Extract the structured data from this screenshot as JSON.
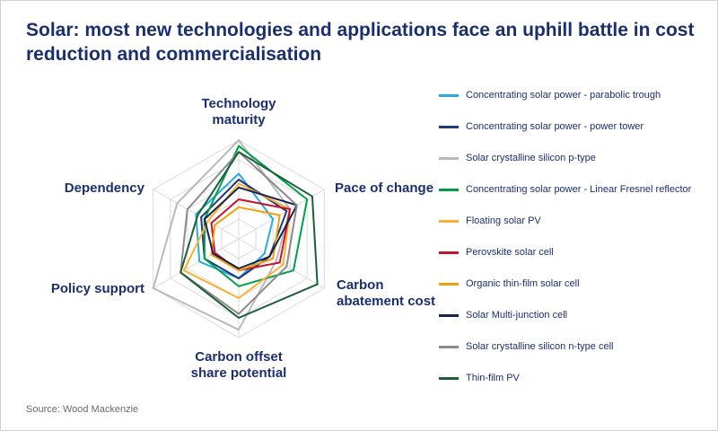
{
  "page": {
    "title_line1": "Solar: most new technologies and applications face an uphill battle in cost",
    "title_line2": "reduction and commercialisation",
    "source": "Source: Wood Mackenzie"
  },
  "colors": {
    "title_text": "#1b2f6e",
    "axis_label_text": "#1b2f6e",
    "legend_text": "#1b2f6e",
    "source_text": "#6b6b6b",
    "grid": "#d9d9d9"
  },
  "chart_data": {
    "type": "radar",
    "title": "Solar: most new technologies and applications face an uphill battle in cost reduction and commercialisation",
    "axes": [
      "Technology maturity",
      "Pace of change",
      "Carbon abatement cost",
      "Carbon offset share potential",
      "Policy support",
      "Dependency"
    ],
    "value_range": [
      0,
      5
    ],
    "grid": "on",
    "grid_levels": 5,
    "legend_position": "right",
    "series": [
      {
        "name": "Concentrating solar power - parabolic trough",
        "color": "#29abe2",
        "values": [
          3.3,
          2.0,
          1.5,
          2.0,
          2.3,
          2.5
        ]
      },
      {
        "name": "Concentrating solar power - power tower",
        "color": "#1f3a7a",
        "values": [
          3.0,
          2.8,
          1.8,
          2.0,
          2.0,
          2.2
        ]
      },
      {
        "name": "Solar crystalline silicon p-type",
        "color": "#b9b9b9",
        "values": [
          5.0,
          3.0,
          2.2,
          4.6,
          5.0,
          3.6
        ]
      },
      {
        "name": "Concentrating solar power - Linear Fresnel reflector",
        "color": "#00a04a",
        "values": [
          4.7,
          4.0,
          3.2,
          2.4,
          2.0,
          2.0
        ]
      },
      {
        "name": "Floating solar PV",
        "color": "#f9b032",
        "values": [
          2.8,
          3.0,
          2.6,
          3.0,
          3.2,
          1.8
        ]
      },
      {
        "name": "Perovskite solar cell",
        "color": "#c4122f",
        "values": [
          2.0,
          3.0,
          2.4,
          1.6,
          1.4,
          1.6
        ]
      },
      {
        "name": "Organic thin-film solar cell",
        "color": "#efa00b",
        "values": [
          1.6,
          2.4,
          2.0,
          1.6,
          1.6,
          1.4
        ]
      },
      {
        "name": "Solar Multi-junction cell",
        "color": "#17224d",
        "values": [
          2.6,
          3.4,
          1.8,
          1.5,
          1.5,
          2.0
        ]
      },
      {
        "name": "Solar crystalline silicon n-type cell",
        "color": "#8a8a8a",
        "values": [
          4.4,
          3.4,
          2.8,
          3.8,
          3.4,
          3.0
        ]
      },
      {
        "name": "Thin-film PV",
        "color": "#1c5f38",
        "values": [
          4.4,
          4.3,
          4.6,
          4.0,
          3.4,
          2.4
        ]
      }
    ]
  }
}
